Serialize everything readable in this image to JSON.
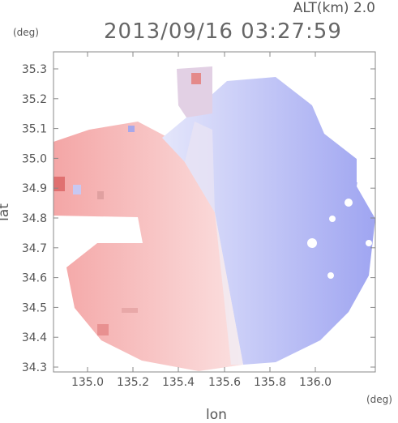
{
  "title": "2013/09/16 03:27:59",
  "altitude_label": "ALT(km) 2.0",
  "unit_y": "(deg)",
  "unit_x": "(deg)",
  "xlabel": "lon",
  "ylabel": "lat",
  "x_ticks": [
    "135.0",
    "135.2",
    "135.4",
    "135.6",
    "135.8",
    "136.0"
  ],
  "y_ticks": [
    "35.3",
    "35.2",
    "35.1",
    "35.0",
    "34.9",
    "34.8",
    "34.7",
    "34.6",
    "34.5",
    "34.4",
    "34.3"
  ],
  "colors": {
    "positive": "#f6b8b8",
    "negative": "#b8bcf6",
    "axis": "#888888"
  }
}
